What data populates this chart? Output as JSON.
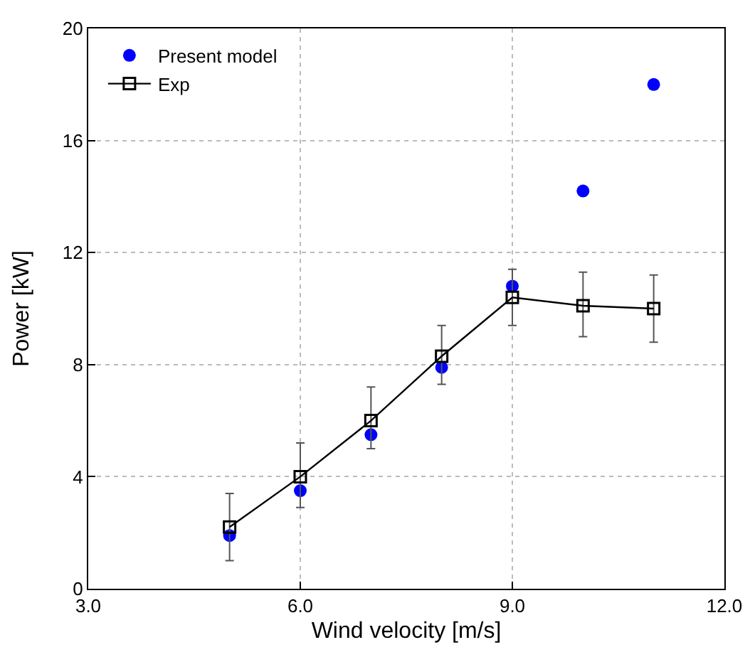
{
  "chart_data": {
    "type": "scatter",
    "xlabel": "Wind velocity [m/s]",
    "ylabel": "Power [kW]",
    "x": [
      5,
      6,
      7,
      8,
      9,
      10,
      11
    ],
    "series": [
      {
        "name": "Present model",
        "type": "scatter",
        "color": "#0000ff",
        "marker": "circle",
        "values": [
          1.9,
          3.5,
          5.5,
          7.9,
          10.8,
          14.2,
          18.0
        ]
      },
      {
        "name": "Exp",
        "type": "line",
        "color": "#000000",
        "marker": "square",
        "line_style": "solid",
        "values": [
          2.2,
          4.0,
          6.0,
          8.3,
          10.4,
          10.1,
          10.0
        ],
        "errors": [
          [
            1.0,
            3.4
          ],
          [
            2.9,
            5.2
          ],
          [
            5.0,
            7.2
          ],
          [
            7.3,
            9.4
          ],
          [
            9.4,
            11.4
          ],
          [
            9.0,
            11.3
          ],
          [
            8.8,
            11.2
          ]
        ]
      }
    ],
    "xlim": [
      3,
      12
    ],
    "xticks": [
      {
        "value": 3,
        "label": "3.0"
      },
      {
        "value": 6,
        "label": "6.0"
      },
      {
        "value": 9,
        "label": "9.0"
      },
      {
        "value": 12,
        "label": "12.0"
      }
    ],
    "ylim": [
      0,
      20
    ],
    "yticks": [
      0,
      4,
      8,
      12,
      16,
      20
    ],
    "grid": true,
    "legend": "top left"
  }
}
